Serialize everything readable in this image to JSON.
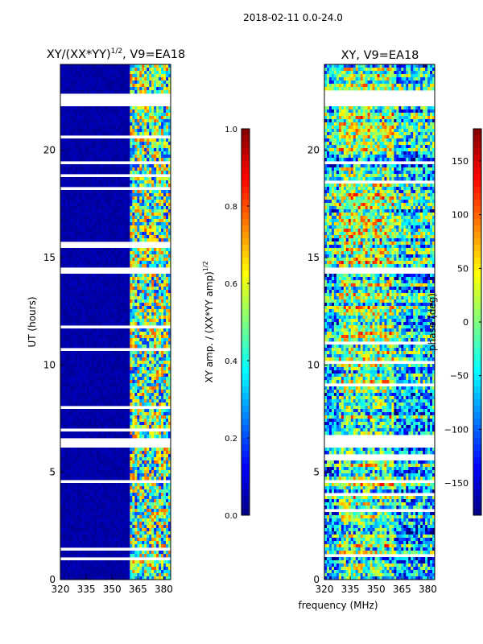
{
  "suptitle": "2018-02-11 0.0-24.0",
  "colors": {
    "jet": [
      "#00007f",
      "#0000ff",
      "#007fff",
      "#00ffff",
      "#7fff7f",
      "#ffff00",
      "#ff7f00",
      "#ff0000",
      "#7f0000"
    ],
    "background": "#00008b"
  },
  "chart_data": [
    {
      "type": "heatmap",
      "title": "XY/(XX*YY)",
      "title_sup": "1/2",
      "title_suffix": ", V9=EA18",
      "xlabel": "",
      "ylabel": "UT (hours)",
      "xlim": [
        320,
        384
      ],
      "ylim": [
        0,
        24
      ],
      "xticks": [
        {
          "v": 320,
          "label": "320"
        },
        {
          "v": 335,
          "label": "335"
        },
        {
          "v": 350,
          "label": "350"
        },
        {
          "v": 365,
          "label": "365"
        },
        {
          "v": 380,
          "label": "380"
        }
      ],
      "yticks": [
        {
          "v": 0,
          "label": "0"
        },
        {
          "v": 5,
          "label": "5"
        },
        {
          "v": 10,
          "label": "10"
        },
        {
          "v": 15,
          "label": "15"
        },
        {
          "v": 20,
          "label": "20"
        }
      ],
      "high_signal_band_MHz": [
        361,
        383
      ],
      "gaps_hours": [
        [
          6.2,
          6.65
        ],
        [
          14.3,
          14.6
        ],
        [
          22.1,
          22.65
        ]
      ],
      "colorbar": {
        "label": "XY amp. / (XX*YY amp)",
        "label_sup": "1/2",
        "range": [
          0.0,
          1.0
        ],
        "ticks": [
          {
            "v": 0.0,
            "label": "0.0"
          },
          {
            "v": 0.2,
            "label": "0.2"
          },
          {
            "v": 0.4,
            "label": "0.4"
          },
          {
            "v": 0.6,
            "label": "0.6"
          },
          {
            "v": 0.8,
            "label": "0.8"
          },
          {
            "v": 1.0,
            "label": "1.0"
          }
        ]
      }
    },
    {
      "type": "heatmap",
      "title": "XY, V9=EA18",
      "xlabel": "frequency (MHz)",
      "ylabel": "",
      "xlim": [
        320,
        384
      ],
      "ylim": [
        0,
        24
      ],
      "xticks": [
        {
          "v": 320,
          "label": "320"
        },
        {
          "v": 335,
          "label": "335"
        },
        {
          "v": 350,
          "label": "350"
        },
        {
          "v": 365,
          "label": "365"
        },
        {
          "v": 380,
          "label": "380"
        }
      ],
      "yticks": [
        {
          "v": 0,
          "label": "0"
        },
        {
          "v": 5,
          "label": "5"
        },
        {
          "v": 10,
          "label": "10"
        },
        {
          "v": 15,
          "label": "15"
        },
        {
          "v": 20,
          "label": "20"
        }
      ],
      "gaps_hours": [
        [
          6.2,
          6.65
        ],
        [
          14.3,
          14.6
        ],
        [
          22.1,
          22.65
        ]
      ],
      "colorbar": {
        "label": "phase (deg)",
        "range": [
          -180,
          180
        ],
        "ticks": [
          {
            "v": -150,
            "label": "−150"
          },
          {
            "v": -100,
            "label": "−100"
          },
          {
            "v": -50,
            "label": "−50"
          },
          {
            "v": 0,
            "label": "0"
          },
          {
            "v": 50,
            "label": "50"
          },
          {
            "v": 100,
            "label": "100"
          },
          {
            "v": 150,
            "label": "150"
          }
        ]
      }
    }
  ]
}
